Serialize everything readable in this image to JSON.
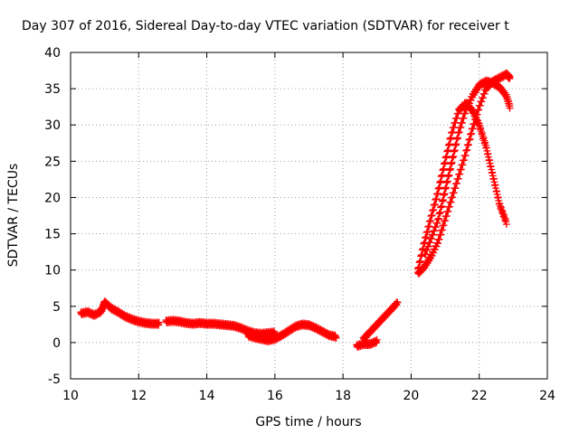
{
  "chart_data": {
    "type": "scatter",
    "title": "Day 307 of 2016, Sidereal Day-to-day VTEC variation (SDTVAR) for receiver t",
    "xlabel": "GPS time / hours",
    "ylabel": "SDTVAR / TECUs",
    "xlim": [
      10,
      24
    ],
    "ylim": [
      -5,
      40
    ],
    "xticks": [
      "10",
      "12",
      "14",
      "16",
      "18",
      "20",
      "22",
      "24"
    ],
    "yticks": [
      "-5",
      "0",
      "5",
      "10",
      "15",
      "20",
      "25",
      "30",
      "35",
      "40"
    ],
    "grid": true,
    "marker": "plus",
    "color": "#ff0000",
    "series": [
      {
        "x": [
          10.3,
          10.5,
          10.7,
          10.9,
          11.0,
          11.2,
          11.4,
          11.6,
          11.8,
          12.0,
          12.2,
          12.4,
          12.6
        ],
        "y": [
          4.0,
          4.2,
          3.8,
          4.3,
          5.6,
          4.7,
          4.2,
          3.6,
          3.2,
          2.9,
          2.7,
          2.6,
          2.6
        ]
      },
      {
        "x": [
          12.8,
          13.0,
          13.2,
          13.4,
          13.6,
          13.8,
          14.0,
          14.2,
          14.4,
          14.6,
          14.8,
          15.0,
          15.2,
          15.4,
          15.6,
          15.8,
          16.0
        ],
        "y": [
          2.9,
          3.0,
          2.9,
          2.7,
          2.6,
          2.7,
          2.6,
          2.6,
          2.5,
          2.4,
          2.3,
          2.0,
          1.6,
          1.3,
          1.2,
          1.3,
          1.4
        ]
      },
      {
        "x": [
          15.2,
          15.4,
          15.6,
          15.8,
          16.0,
          16.2,
          16.4,
          16.6,
          16.8,
          17.0,
          17.2,
          17.4,
          17.6,
          17.8
        ],
        "y": [
          1.0,
          0.7,
          0.5,
          0.3,
          0.5,
          1.0,
          1.6,
          2.2,
          2.5,
          2.4,
          2.0,
          1.5,
          1.0,
          0.8
        ]
      },
      {
        "x": [
          18.4,
          18.6,
          18.8,
          19.0
        ],
        "y": [
          -0.5,
          -0.2,
          -0.2,
          0.2
        ]
      },
      {
        "x": [
          18.6,
          18.8,
          19.0,
          19.2,
          19.4,
          19.6
        ],
        "y": [
          0.5,
          1.5,
          2.5,
          3.5,
          4.5,
          5.5
        ]
      },
      {
        "x": [
          20.2,
          20.4,
          20.6,
          20.8,
          21.0,
          21.2,
          21.4,
          21.6,
          21.8,
          22.0,
          22.2,
          22.4,
          22.6,
          22.8
        ],
        "y": [
          10.0,
          14.0,
          17.5,
          21.0,
          25.0,
          29.0,
          32.0,
          33.0,
          32.0,
          30.0,
          27.0,
          23.0,
          19.0,
          16.5
        ]
      },
      {
        "x": [
          20.2,
          20.4,
          20.6,
          20.8,
          21.0,
          21.2,
          21.4,
          21.6,
          21.8,
          22.0,
          22.2,
          22.4,
          22.6,
          22.8,
          22.9
        ],
        "y": [
          9.5,
          10.5,
          12.0,
          14.0,
          17.0,
          20.0,
          23.0,
          26.0,
          29.5,
          32.5,
          35.0,
          36.0,
          36.5,
          37.0,
          36.5
        ]
      },
      {
        "x": [
          20.4,
          20.6,
          20.8,
          21.0,
          21.2,
          21.4,
          21.6,
          21.8,
          22.0,
          22.2,
          22.4,
          22.6,
          22.8,
          22.9
        ],
        "y": [
          12.0,
          14.5,
          17.0,
          21.0,
          25.0,
          29.0,
          32.0,
          34.0,
          35.5,
          36.0,
          35.8,
          35.2,
          34.0,
          32.5
        ]
      }
    ]
  }
}
